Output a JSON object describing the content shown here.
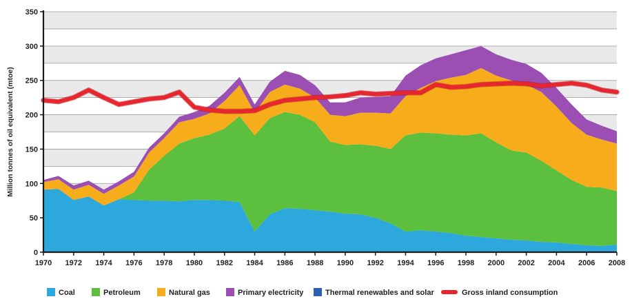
{
  "chart_data": {
    "type": "area",
    "ylabel": "Million tonnes of oil equivalent (mtoe)",
    "xlabel": "",
    "ylim": [
      0,
      350
    ],
    "xlim": [
      1970,
      2008
    ],
    "yticks": [
      0,
      50,
      100,
      150,
      200,
      250,
      300,
      350
    ],
    "xticks": [
      1970,
      1972,
      1974,
      1976,
      1978,
      1980,
      1982,
      1984,
      1986,
      1988,
      1990,
      1992,
      1994,
      1996,
      1998,
      2000,
      2002,
      2004,
      2006,
      2008
    ],
    "stacked": true,
    "grid": true,
    "legend_position": "bottom",
    "x": [
      1970,
      1971,
      1972,
      1973,
      1974,
      1975,
      1976,
      1977,
      1978,
      1979,
      1980,
      1981,
      1982,
      1983,
      1984,
      1985,
      1986,
      1987,
      1988,
      1989,
      1990,
      1991,
      1992,
      1993,
      1994,
      1995,
      1996,
      1997,
      1998,
      1999,
      2000,
      2001,
      2002,
      2003,
      2004,
      2005,
      2006,
      2007,
      2008
    ],
    "series": [
      {
        "name": "Thermal renewables and solar",
        "color": "#2b5fb3",
        "kind": "stacked-area",
        "values": [
          0,
          0,
          0,
          0,
          0,
          0,
          0,
          0,
          0,
          0,
          0,
          0,
          0,
          0,
          0,
          0,
          0,
          0,
          0,
          0,
          0,
          0,
          0,
          0,
          0,
          0,
          0,
          0,
          0,
          0,
          0,
          0,
          0,
          0,
          0,
          0,
          0,
          0,
          0
        ]
      },
      {
        "name": "Coal",
        "color": "#2da8dc",
        "kind": "stacked-area",
        "values": [
          91,
          92,
          76,
          81,
          68,
          77,
          76,
          75,
          75,
          74,
          76,
          76,
          75,
          73,
          30,
          55,
          64,
          63,
          61,
          59,
          56,
          55,
          50,
          42,
          30,
          32,
          30,
          28,
          24,
          22,
          20,
          18,
          17,
          15,
          14,
          12,
          10,
          9,
          11
        ]
      },
      {
        "name": "Petroleum",
        "color": "#5cbf3e",
        "kind": "stacked-area",
        "values": [
          0,
          0,
          0,
          0,
          0,
          0,
          11,
          45,
          65,
          84,
          90,
          95,
          105,
          125,
          140,
          140,
          140,
          137,
          128,
          102,
          100,
          102,
          105,
          108,
          140,
          142,
          143,
          143,
          146,
          151,
          140,
          130,
          128,
          118,
          105,
          93,
          85,
          85,
          78
        ]
      },
      {
        "name": "Natural gas",
        "color": "#f7ac1c",
        "kind": "stacked-area",
        "values": [
          11,
          14,
          15,
          17,
          17,
          20,
          23,
          25,
          26,
          31,
          28,
          31,
          40,
          45,
          33,
          38,
          40,
          38,
          36,
          39,
          42,
          46,
          48,
          52,
          57,
          65,
          76,
          83,
          88,
          95,
          97,
          102,
          99,
          100,
          93,
          83,
          76,
          70,
          69
        ]
      },
      {
        "name": "Primary electricity",
        "color": "#9b4fb2",
        "kind": "stacked-area",
        "values": [
          3,
          5,
          6,
          6,
          6,
          6,
          7,
          7,
          7,
          8,
          10,
          11,
          12,
          12,
          12,
          15,
          20,
          20,
          18,
          18,
          20,
          22,
          23,
          25,
          30,
          33,
          33,
          34,
          36,
          32,
          31,
          30,
          30,
          28,
          27,
          27,
          22,
          20,
          18
        ]
      },
      {
        "name": "Gross inland consumption",
        "color": "#e8262f",
        "kind": "line",
        "values": [
          221,
          219,
          225,
          236,
          225,
          215,
          219,
          223,
          225,
          233,
          211,
          207,
          205,
          205,
          206,
          215,
          221,
          223,
          225,
          226,
          228,
          232,
          230,
          231,
          232,
          232,
          244,
          240,
          241,
          244,
          245,
          246,
          245,
          242,
          244,
          246,
          243,
          236,
          233
        ]
      }
    ],
    "legend": [
      {
        "name": "Coal",
        "color": "#2da8dc",
        "kind": "swatch"
      },
      {
        "name": "Petroleum",
        "color": "#5cbf3e",
        "kind": "swatch"
      },
      {
        "name": "Natural gas",
        "color": "#f7ac1c",
        "kind": "swatch"
      },
      {
        "name": "Primary electricity",
        "color": "#9b4fb2",
        "kind": "swatch"
      },
      {
        "name": "Thermal renewables and solar",
        "color": "#2b5fb3",
        "kind": "swatch"
      },
      {
        "name": "Gross inland consumption",
        "color": "#e8262f",
        "kind": "line"
      }
    ]
  }
}
